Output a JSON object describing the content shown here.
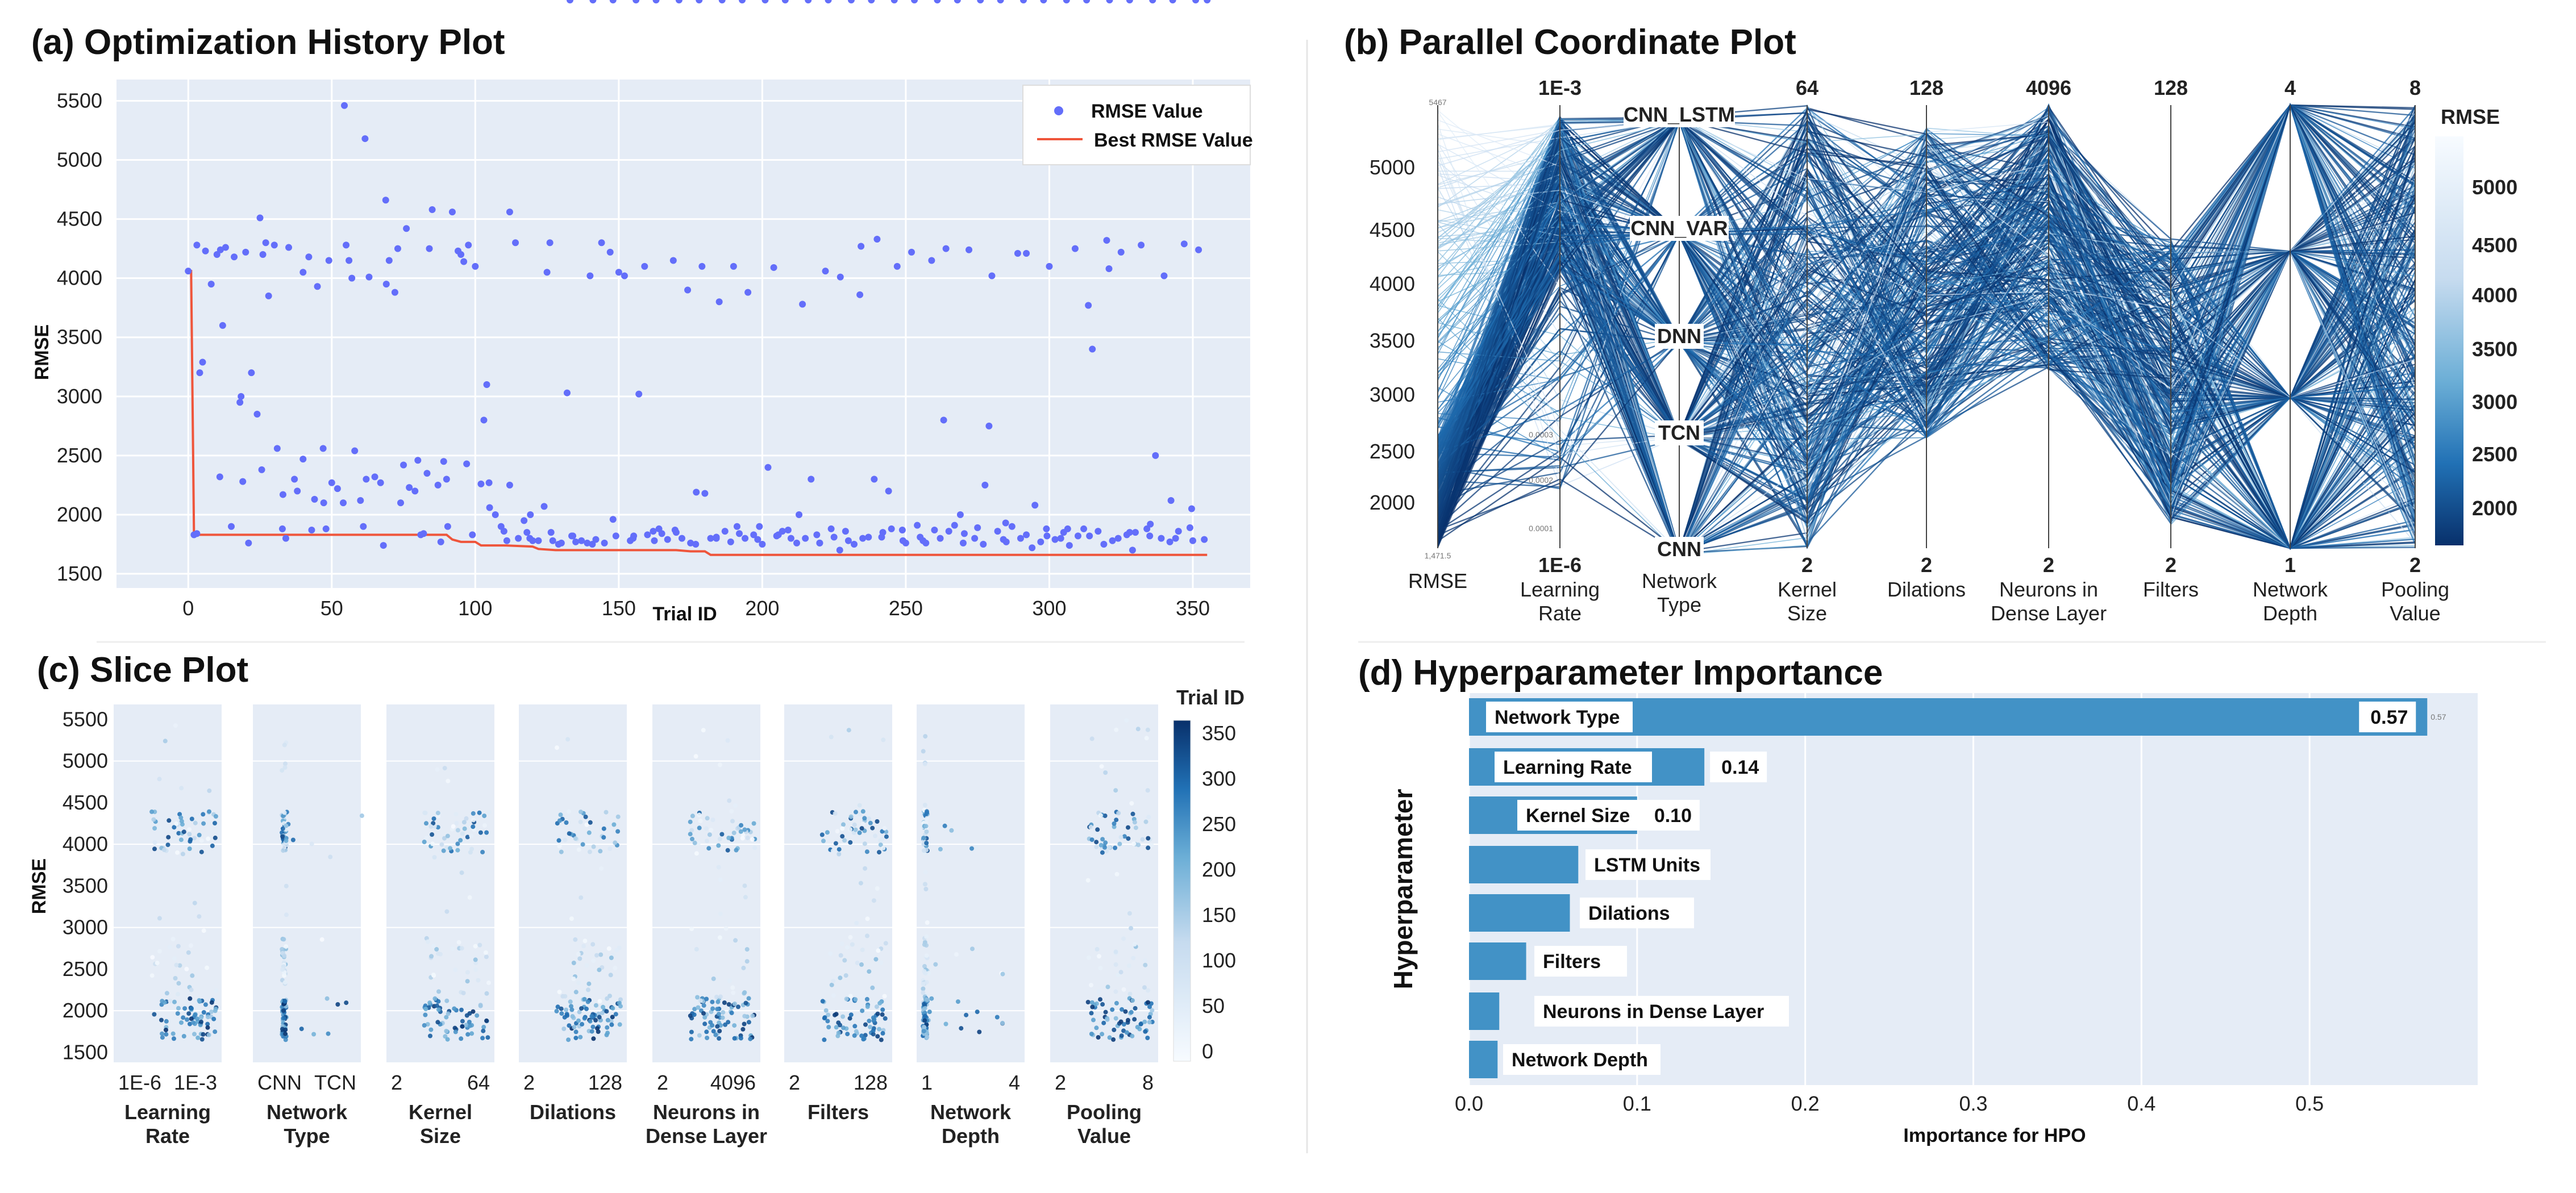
{
  "colors": {
    "plot_bg": "#e5ecf6",
    "grid": "#ffffff",
    "point": "#636efa",
    "best_line": "#ef553b",
    "bar": "#4292c6",
    "dark_blue": "#08306b"
  },
  "chart_data": [
    {
      "id": "a",
      "type": "scatter",
      "title": "(a) Optimization History Plot",
      "xlabel": "Trial ID",
      "ylabel": "RMSE",
      "xlim": [
        -25,
        370
      ],
      "ylim": [
        1380,
        5680
      ],
      "xticks": [
        0,
        50,
        100,
        150,
        200,
        250,
        300,
        350
      ],
      "yticks": [
        1500,
        2000,
        2500,
        3000,
        3500,
        4000,
        4500,
        5000,
        5500
      ],
      "legend": {
        "position": "top-right",
        "entries": [
          "RMSE Value",
          "Best RMSE Value"
        ]
      },
      "best_line": {
        "x": [
          0,
          1,
          2,
          90,
          92,
          95,
          100,
          102,
          110,
          120,
          122,
          128,
          140,
          170,
          175,
          180,
          182,
          190,
          200,
          260,
          300,
          355
        ],
        "y": [
          4060,
          4060,
          1830,
          1830,
          1790,
          1770,
          1770,
          1740,
          1740,
          1730,
          1710,
          1700,
          1700,
          1700,
          1690,
          1690,
          1660,
          1660,
          1660,
          1660,
          1660,
          1660
        ]
      },
      "points_x": [
        0,
        2,
        3,
        5,
        6,
        8,
        10,
        11,
        13,
        15,
        16,
        18,
        19,
        20,
        22,
        24,
        25,
        27,
        28,
        30,
        31,
        33,
        35,
        37,
        38,
        40,
        42,
        44,
        45,
        47,
        49,
        50,
        52,
        54,
        56,
        57,
        58,
        60,
        62,
        63,
        65,
        67,
        69,
        70,
        72,
        74,
        75,
        77,
        79,
        80,
        82,
        84,
        85,
        87,
        89,
        90,
        92,
        94,
        95,
        97,
        99,
        100,
        102,
        104,
        105,
        107,
        109,
        110,
        112,
        114,
        115,
        117,
        119,
        120,
        122,
        124,
        125,
        127,
        129,
        130,
        132,
        134,
        135,
        137,
        139,
        140,
        142,
        144,
        145,
        147,
        149,
        150,
        152,
        154,
        155,
        157,
        159,
        160,
        162,
        164,
        165,
        167,
        169,
        170,
        172,
        174,
        175,
        177,
        179,
        180,
        182,
        184,
        185,
        187,
        189,
        190,
        192,
        194,
        195,
        197,
        199,
        200,
        202,
        204,
        205,
        207,
        209,
        210,
        212,
        214,
        215,
        217,
        219,
        220,
        222,
        224,
        225,
        227,
        229,
        230,
        232,
        234,
        235,
        237,
        239,
        240,
        242,
        244,
        245,
        247,
        249,
        250,
        252,
        254,
        255,
        257,
        259,
        260,
        262,
        264,
        265,
        267,
        269,
        270,
        272,
        274,
        275,
        277,
        279,
        280,
        282,
        284,
        285,
        287,
        289,
        290,
        292,
        294,
        295,
        297,
        299,
        300,
        302,
        304,
        305,
        307,
        309,
        310,
        312,
        314,
        315,
        317,
        319,
        320,
        322,
        324,
        325,
        327,
        329,
        330,
        332,
        334,
        335,
        337,
        339,
        340,
        342,
        344,
        345,
        347,
        349,
        350,
        352,
        354,
        3,
        12,
        21,
        26,
        34,
        43,
        48,
        55,
        61,
        68,
        73,
        81,
        88,
        96,
        103,
        111,
        118,
        126,
        133,
        141,
        148,
        156,
        163,
        171,
        178,
        186,
        193,
        201,
        208,
        216,
        223,
        231,
        238,
        246,
        253,
        261,
        268,
        276,
        283,
        291,
        298,
        306,
        313,
        321,
        328,
        336,
        343,
        351,
        355
      ],
      "points_y": [
        4060,
        1830,
        4280,
        3290,
        4230,
        3950,
        4200,
        2320,
        4260,
        1900,
        4180,
        2950,
        2280,
        4220,
        3200,
        2850,
        4510,
        4300,
        3850,
        4280,
        2560,
        2170,
        4260,
        2300,
        2200,
        2470,
        4180,
        2130,
        3930,
        2560,
        4150,
        2270,
        2220,
        2100,
        4150,
        4000,
        2540,
        2120,
        2300,
        4010,
        2320,
        2270,
        3950,
        4150,
        3880,
        2100,
        2420,
        2230,
        2200,
        2460,
        1840,
        4250,
        4580,
        2250,
        2450,
        2300,
        4560,
        4230,
        4200,
        2430,
        1830,
        4100,
        2260,
        3100,
        2060,
        2000,
        1900,
        1860,
        4560,
        4300,
        1800,
        1950,
        1800,
        1780,
        1780,
        2070,
        4050,
        1780,
        1750,
        1760,
        3030,
        1820,
        1770,
        1780,
        1760,
        4020,
        1790,
        4300,
        1760,
        4220,
        1820,
        4050,
        4020,
        1780,
        1800,
        3020,
        4100,
        1830,
        1860,
        1880,
        1840,
        1790,
        4150,
        1850,
        1800,
        3900,
        1760,
        2190,
        4100,
        2180,
        1800,
        1810,
        3800,
        1860,
        1770,
        4100,
        1840,
        1800,
        3880,
        1830,
        1900,
        1750,
        2400,
        4090,
        1820,
        1860,
        1870,
        1800,
        1760,
        3780,
        1800,
        2300,
        1830,
        1760,
        4060,
        1880,
        1810,
        1700,
        1860,
        1780,
        1750,
        3860,
        1800,
        1810,
        2300,
        4330,
        1850,
        2200,
        1880,
        4100,
        1780,
        1760,
        4220,
        1910,
        1810,
        1760,
        4150,
        1870,
        1800,
        4250,
        1860,
        1910,
        2000,
        1760,
        4240,
        1800,
        1890,
        1750,
        2750,
        4020,
        1860,
        1790,
        1770,
        1900,
        4210,
        1800,
        1830,
        1720,
        2080,
        1770,
        1880,
        4100,
        1790,
        1800,
        1850,
        1740,
        4250,
        1820,
        1880,
        1820,
        3400,
        1860,
        1750,
        4320,
        1780,
        1800,
        4220,
        1830,
        1700,
        1850,
        4280,
        1880,
        1820,
        2500,
        1800,
        4020,
        1770,
        1800,
        1860,
        4290,
        1890,
        1780,
        4240,
        1790,
        1840,
        3600,
        1760,
        4200,
        1800,
        1870,
        1880,
        4280,
        1900,
        1740,
        4250,
        1830,
        1770,
        4140,
        2800,
        1780,
        1850,
        4300
      ],
      "points_extra_y": [
        3200,
        4240,
        3000,
        2380,
        1880,
        4050,
        2100,
        5460,
        5180,
        4660,
        4420,
        2350,
        1900,
        4280,
        2270,
        2250,
        2000,
        1850,
        1820,
        1750,
        1960,
        1820,
        1780,
        1870,
        1750,
        1800,
        1900,
        1790,
        1830,
        2000,
        1760,
        4010,
        4270,
        1810,
        1870,
        1780,
        2800,
        1840,
        2250,
        1930,
        4210,
        1820,
        1880,
        3770,
        4080,
        1850,
        1920,
        2120,
        2050
      ]
    },
    {
      "id": "b",
      "type": "parallel",
      "title": "(b) Parallel Coordinate Plot",
      "axes": [
        {
          "top": "",
          "bottom": "RMSE",
          "bottom_tick": "",
          "ticks": [
            "5000",
            "4500",
            "4000",
            "3500",
            "3000",
            "2500",
            "2000"
          ],
          "top_small": "5467",
          "bottom_small": "1,471.5"
        },
        {
          "top": "1E-3",
          "bottom": "Learning Rate",
          "bottom_tick": "1E-6",
          "small_ticks": [
            "0.0001",
            "0.0002",
            "0.0003"
          ]
        },
        {
          "top": "",
          "bottom": "Network Type",
          "bottom_tick": "",
          "categories": [
            "CNN_LSTM",
            "CNN_VAR",
            "DNN",
            "TCN",
            "CNN"
          ]
        },
        {
          "top": "64",
          "bottom": "Kernel Size",
          "bottom_tick": "2"
        },
        {
          "top": "128",
          "bottom": "Dilations",
          "bottom_tick": "2"
        },
        {
          "top": "4096",
          "bottom": "Neurons in Dense Layer",
          "bottom_tick": "2"
        },
        {
          "top": "128",
          "bottom": "Filters",
          "bottom_tick": "2"
        },
        {
          "top": "4",
          "bottom": "Network Depth",
          "bottom_tick": "1"
        },
        {
          "top": "8",
          "bottom": "Pooling Value",
          "bottom_tick": "2"
        }
      ],
      "colorbar": {
        "title": "RMSE",
        "ticks": [
          "5000",
          "4500",
          "4000",
          "3500",
          "3000",
          "2500",
          "2000"
        ]
      }
    },
    {
      "id": "c",
      "type": "scatter",
      "title": "(c) Slice Plot",
      "ylabel": "RMSE",
      "yticks": [
        "5500",
        "5000",
        "4500",
        "4000",
        "3500",
        "3000",
        "2500",
        "2000",
        "1500"
      ],
      "panels": [
        {
          "label": "Learning Rate",
          "left": "1E-6",
          "right": "1E-3"
        },
        {
          "label": "Network Type",
          "left": "CNN",
          "right": "TCN"
        },
        {
          "label": "Kernel Size",
          "left": "2",
          "right": "64"
        },
        {
          "label": "Dilations",
          "left": "2",
          "right": "128"
        },
        {
          "label": "Neurons in Dense Layer",
          "left": "2",
          "right": "4096"
        },
        {
          "label": "Filters",
          "left": "2",
          "right": "128"
        },
        {
          "label": "Network Depth",
          "left": "1",
          "right": "4"
        },
        {
          "label": "Pooling Value",
          "left": "2",
          "right": "8"
        }
      ],
      "colorbar": {
        "title": "Trial ID",
        "ticks": [
          "350",
          "300",
          "250",
          "200",
          "150",
          "100",
          "50",
          "0"
        ]
      }
    },
    {
      "id": "d",
      "type": "bar",
      "title": "(d) Hyperparameter Importance",
      "xlabel": "Importance for HPO",
      "ylabel": "Hyperparameter",
      "xlim": [
        0,
        0.6
      ],
      "xticks": [
        "0.0",
        "0.1",
        "0.2",
        "0.3",
        "0.4",
        "0.5"
      ],
      "categories": [
        "Network Type",
        "Learning Rate",
        "Kernel Size",
        "LSTM Units",
        "Dilations",
        "Filters",
        "Neurons in Dense Layer",
        "Network Depth"
      ],
      "values": [
        0.57,
        0.14,
        0.1,
        0.065,
        0.06,
        0.034,
        0.018,
        0.017
      ],
      "value_labels": [
        "0.57",
        "0.14",
        "0.10",
        "",
        "",
        "",
        "",
        ""
      ],
      "small_value_label": "0.57"
    }
  ]
}
